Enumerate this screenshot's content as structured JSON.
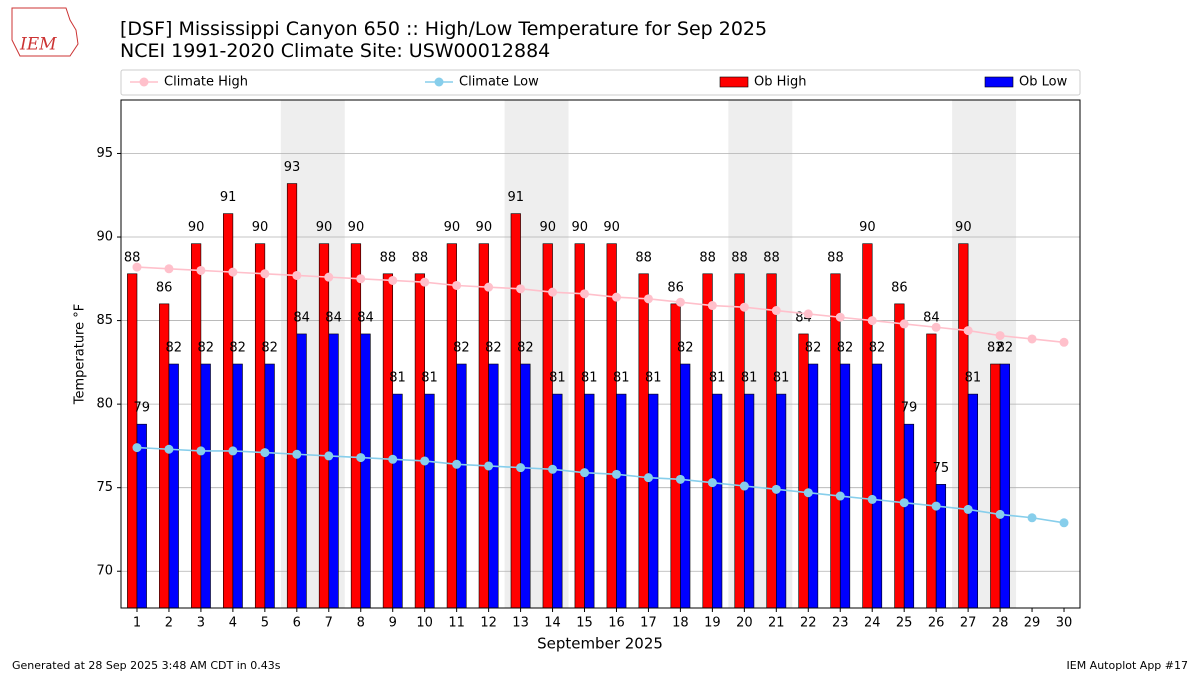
{
  "logo": "IEM",
  "footer_left": "Generated at 28 Sep 2025 3:48 AM CDT in 0.43s",
  "footer_right": "IEM Autoplot App #17",
  "chart_data": {
    "type": "bar",
    "title": "[DSF] Mississippi Canyon 650 :: High/Low Temperature for Sep 2025",
    "subtitle": "NCEI 1991-2020 Climate Site: USW00012884",
    "xlabel": "September 2025",
    "ylabel": "Temperature °F",
    "x": [
      1,
      2,
      3,
      4,
      5,
      6,
      7,
      8,
      9,
      10,
      11,
      12,
      13,
      14,
      15,
      16,
      17,
      18,
      19,
      20,
      21,
      22,
      23,
      24,
      25,
      26,
      27,
      28,
      29,
      30
    ],
    "xlim": [
      0.5,
      30.5
    ],
    "xticks": [
      1,
      2,
      3,
      4,
      5,
      6,
      7,
      8,
      9,
      10,
      11,
      12,
      13,
      14,
      15,
      16,
      17,
      18,
      19,
      20,
      21,
      22,
      23,
      24,
      25,
      26,
      27,
      28,
      29,
      30
    ],
    "ylim": [
      67.8,
      98.2
    ],
    "yticks": [
      70,
      75,
      80,
      85,
      90,
      95
    ],
    "grid": true,
    "legend": "top",
    "weekend_bands": [
      [
        5.5,
        7.5
      ],
      [
        12.5,
        14.5
      ],
      [
        19.5,
        21.5
      ],
      [
        26.5,
        28.5
      ]
    ],
    "series": [
      {
        "name": "Climate High",
        "kind": "line",
        "color": "#ffc0cb",
        "values": [
          88.2,
          88.1,
          88.0,
          87.9,
          87.8,
          87.7,
          87.6,
          87.5,
          87.4,
          87.3,
          87.1,
          87.0,
          86.9,
          86.7,
          86.6,
          86.4,
          86.3,
          86.1,
          85.9,
          85.8,
          85.6,
          85.4,
          85.2,
          85.0,
          84.8,
          84.6,
          84.4,
          84.1,
          83.9,
          83.7
        ]
      },
      {
        "name": "Climate Low",
        "kind": "line",
        "color": "#87ceeb",
        "values": [
          77.4,
          77.3,
          77.2,
          77.2,
          77.1,
          77.0,
          76.9,
          76.8,
          76.7,
          76.6,
          76.4,
          76.3,
          76.2,
          76.1,
          75.9,
          75.8,
          75.6,
          75.5,
          75.3,
          75.1,
          74.9,
          74.7,
          74.5,
          74.3,
          74.1,
          73.9,
          73.7,
          73.4,
          73.2,
          72.9
        ]
      },
      {
        "name": "Ob High",
        "kind": "bar",
        "color": "#ff0000",
        "values": [
          87.8,
          86.0,
          89.6,
          91.4,
          89.6,
          93.2,
          89.6,
          89.6,
          87.8,
          87.8,
          89.6,
          89.6,
          91.4,
          89.6,
          89.6,
          89.6,
          87.8,
          86.0,
          87.8,
          87.8,
          87.8,
          84.2,
          87.8,
          89.6,
          86.0,
          84.2,
          89.6,
          82.4,
          null,
          null
        ],
        "value_labels": [
          "88",
          "86",
          "90",
          "91",
          "90",
          "93",
          "90",
          "90",
          "88",
          "88",
          "90",
          "90",
          "91",
          "90",
          "90",
          "90",
          "88",
          "86",
          "88",
          "88",
          "88",
          "84",
          "88",
          "90",
          "86",
          "84",
          "90",
          "82",
          null,
          null
        ]
      },
      {
        "name": "Ob Low",
        "kind": "bar",
        "color": "#0000ff",
        "values": [
          78.8,
          82.4,
          82.4,
          82.4,
          82.4,
          84.2,
          84.2,
          84.2,
          80.6,
          80.6,
          82.4,
          82.4,
          82.4,
          80.6,
          80.6,
          80.6,
          80.6,
          82.4,
          80.6,
          80.6,
          80.6,
          82.4,
          82.4,
          82.4,
          78.8,
          75.2,
          80.6,
          82.4,
          null,
          null
        ],
        "value_labels": [
          "79",
          "82",
          "82",
          "82",
          "82",
          "84",
          "84",
          "84",
          "81",
          "81",
          "82",
          "82",
          "82",
          "81",
          "81",
          "81",
          "81",
          "82",
          "81",
          "81",
          "81",
          "82",
          "82",
          "82",
          "79",
          "75",
          "81",
          "82",
          null,
          null
        ]
      }
    ]
  }
}
